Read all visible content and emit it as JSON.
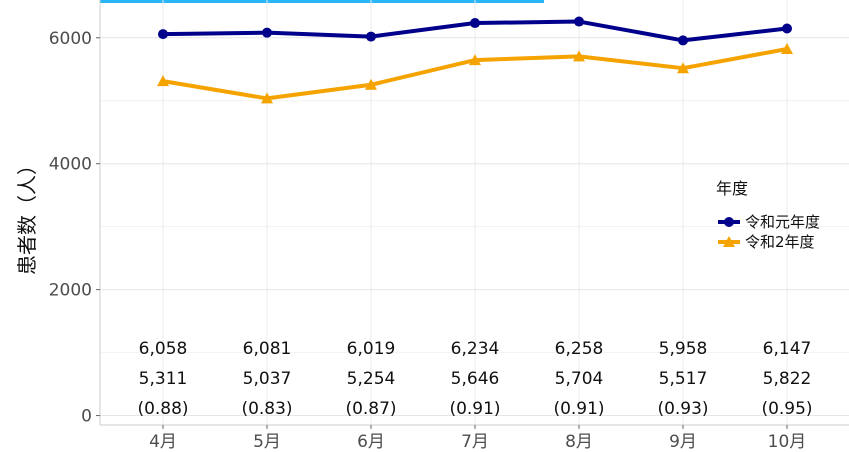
{
  "chart_data": {
    "type": "line",
    "categories": [
      "4月",
      "5月",
      "6月",
      "7月",
      "8月",
      "9月",
      "10月"
    ],
    "series": [
      {
        "name": "令和元年度",
        "values": [
          6058,
          6081,
          6019,
          6234,
          6258,
          5958,
          6147
        ],
        "labels": [
          "6,058",
          "6,081",
          "6,019",
          "6,234",
          "6,258",
          "5,958",
          "6,147"
        ],
        "color": "#00008b",
        "marker": "circle"
      },
      {
        "name": "令和2年度",
        "values": [
          5311,
          5037,
          5254,
          5646,
          5704,
          5517,
          5822
        ],
        "labels": [
          "5,311",
          "5,037",
          "5,254",
          "5,646",
          "5,704",
          "5,517",
          "5,822"
        ],
        "color": "#f5a300",
        "marker": "triangle"
      }
    ],
    "ratios": [
      "(0.88)",
      "(0.83)",
      "(0.87)",
      "(0.91)",
      "(0.91)",
      "(0.93)",
      "(0.95)"
    ],
    "yticks": [
      0,
      2000,
      4000,
      6000
    ],
    "ylim": [
      -150,
      6600
    ],
    "ylabel": "患者数（人）",
    "xlabel": "",
    "legend": {
      "title": "年度",
      "placement": "right"
    },
    "grid": true
  }
}
